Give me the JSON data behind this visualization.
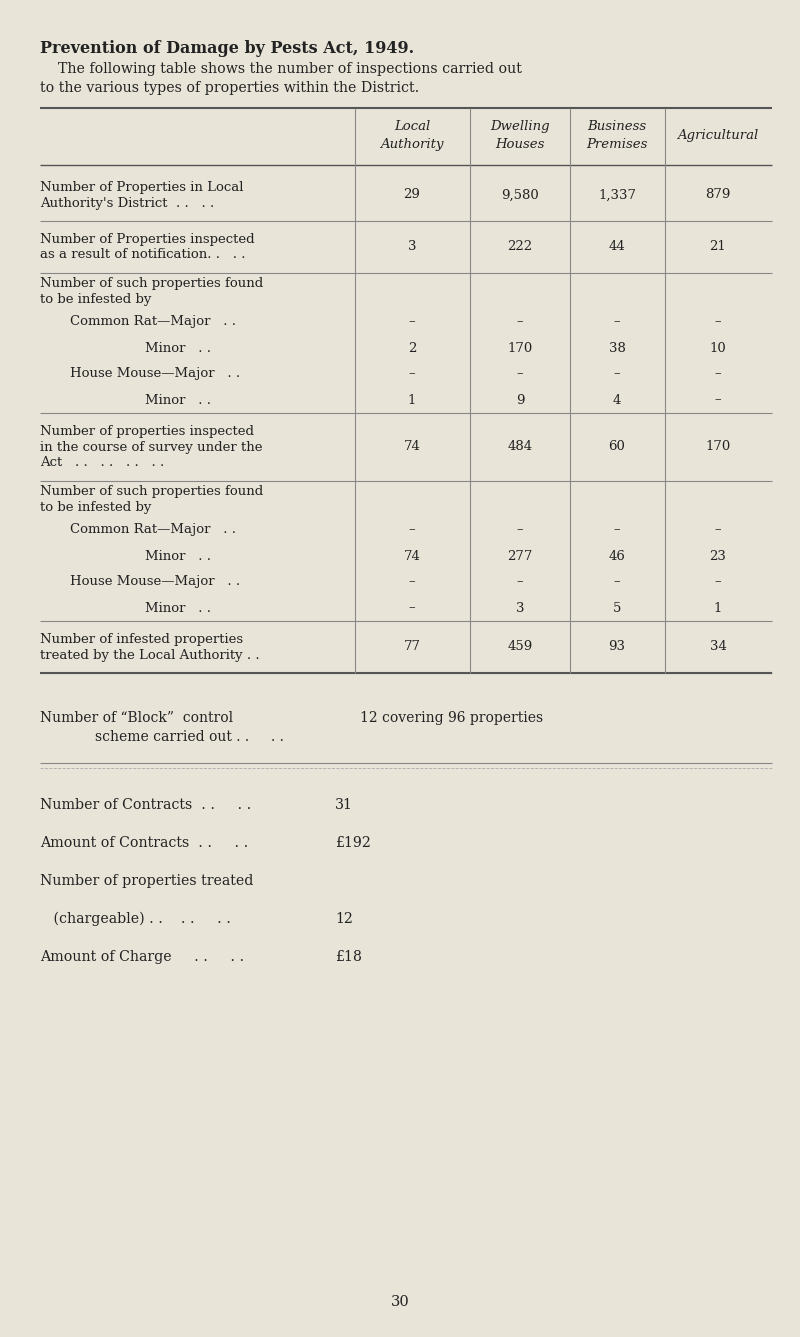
{
  "bg_color": "#e8e4d8",
  "title": "Prevention of Damage by Pests Act, 1949.",
  "subtitle_line1": "    The following table shows the number of inspections carried out",
  "subtitle_line2": "to the various types of properties within the District.",
  "col_headers": [
    [
      "Local",
      "Authority"
    ],
    [
      "Dwelling",
      "Houses"
    ],
    [
      "Business",
      "Premises"
    ],
    [
      "Agricultural"
    ]
  ],
  "page_number": "30"
}
